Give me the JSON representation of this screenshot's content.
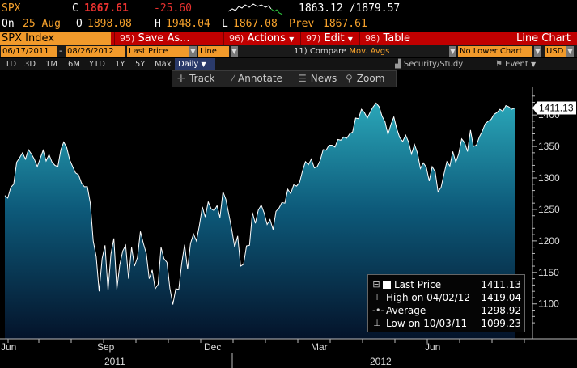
{
  "ticker": {
    "symbol": "SPX",
    "last_label": "C",
    "last": "1867.61",
    "change": "-25.60",
    "range": "1863.12 /1879.57",
    "date_label": "On",
    "date": "25 Aug",
    "open_label": "O",
    "open": "1898.08",
    "high_label": "H",
    "high": "1948.04",
    "low_label": "L",
    "low": "1867.08",
    "prev_label": "Prev",
    "prev": "1867.61"
  },
  "menu": {
    "title": "SPX Index",
    "items": [
      {
        "num": "95)",
        "label": "Save As..."
      },
      {
        "num": "96)",
        "label": "Actions"
      },
      {
        "num": "97)",
        "label": "Edit"
      },
      {
        "num": "98)",
        "label": "Table"
      }
    ],
    "right_label": "Line Chart"
  },
  "controls": {
    "start_date": "06/17/2011",
    "end_date": "08/26/2012",
    "field": "Last Price",
    "style": "Line",
    "compare_num": "11)",
    "compare_label": "Compare",
    "compare_value": "Mov. Avgs",
    "lower_chart": "No Lower Chart",
    "currency": "USD"
  },
  "periods": {
    "items": [
      "1D",
      "3D",
      "1M",
      "6M",
      "YTD",
      "1Y",
      "5Y",
      "Max"
    ],
    "selected": "Daily",
    "security_study": "Security/Study",
    "event": "Event"
  },
  "chart_toolbar": {
    "track": "Track",
    "annotate": "Annotate",
    "news": "News",
    "zoom": "Zoom"
  },
  "legend": {
    "rows": [
      {
        "name": "Last Price",
        "value": "1411.13"
      },
      {
        "name": "High on 04/02/12",
        "value": "1419.04"
      },
      {
        "name": "Average",
        "value": "1298.92"
      },
      {
        "name": "Low on 10/03/11",
        "value": "1099.23"
      }
    ]
  },
  "colors": {
    "accent": "#f19a2b",
    "menu_bar": "#c00000",
    "area_top": "#2aa6b8",
    "area_bottom": "#04132a",
    "negative": "#e8312f"
  },
  "chart_data": {
    "type": "area",
    "title": "",
    "xlabel": "",
    "ylabel": "",
    "ylim": [
      1065,
      1440
    ],
    "yticks": [
      1100,
      1150,
      1200,
      1250,
      1300,
      1350,
      1400
    ],
    "x_month_labels": [
      "Jun",
      "Sep",
      "Dec",
      "Mar",
      "Jun"
    ],
    "x_year_labels": [
      "2011",
      "2012"
    ],
    "last_price_label": "1411.13",
    "series": [
      {
        "values": [
          1272,
          1268,
          1285,
          1290,
          1325,
          1332,
          1340,
          1330,
          1345,
          1338,
          1330,
          1318,
          1331,
          1344,
          1327,
          1337,
          1325,
          1320,
          1318,
          1345,
          1357,
          1348,
          1329,
          1318,
          1308,
          1305,
          1292,
          1286,
          1286,
          1260,
          1200,
          1175,
          1120,
          1172,
          1193,
          1121,
          1179,
          1204,
          1123,
          1162,
          1184,
          1193,
          1140,
          1190,
          1160,
          1174,
          1215,
          1196,
          1180,
          1140,
          1154,
          1124,
          1131,
          1190,
          1172,
          1166,
          1125,
          1099,
          1124,
          1123,
          1164,
          1194,
          1155,
          1196,
          1211,
          1200,
          1224,
          1254,
          1238,
          1262,
          1251,
          1248,
          1256,
          1237,
          1278,
          1266,
          1242,
          1218,
          1190,
          1208,
          1160,
          1163,
          1192,
          1193,
          1245,
          1228,
          1249,
          1257,
          1244,
          1226,
          1234,
          1218,
          1247,
          1252,
          1261,
          1260,
          1282,
          1275,
          1289,
          1287,
          1293,
          1311,
          1326,
          1321,
          1330,
          1316,
          1318,
          1328,
          1345,
          1344,
          1352,
          1352,
          1349,
          1361,
          1360,
          1365,
          1363,
          1370,
          1373,
          1395,
          1394,
          1409,
          1404,
          1395,
          1405,
          1413,
          1419,
          1413,
          1398,
          1389,
          1369,
          1385,
          1397,
          1378,
          1364,
          1358,
          1368,
          1357,
          1338,
          1353,
          1340,
          1315,
          1324,
          1317,
          1295,
          1318,
          1310,
          1278,
          1285,
          1306,
          1326,
          1319,
          1342,
          1325,
          1338,
          1362,
          1356,
          1342,
          1376,
          1350,
          1352,
          1365,
          1374,
          1386,
          1390,
          1393,
          1401,
          1404,
          1409,
          1406,
          1415,
          1413,
          1409,
          1411
        ]
      }
    ]
  }
}
